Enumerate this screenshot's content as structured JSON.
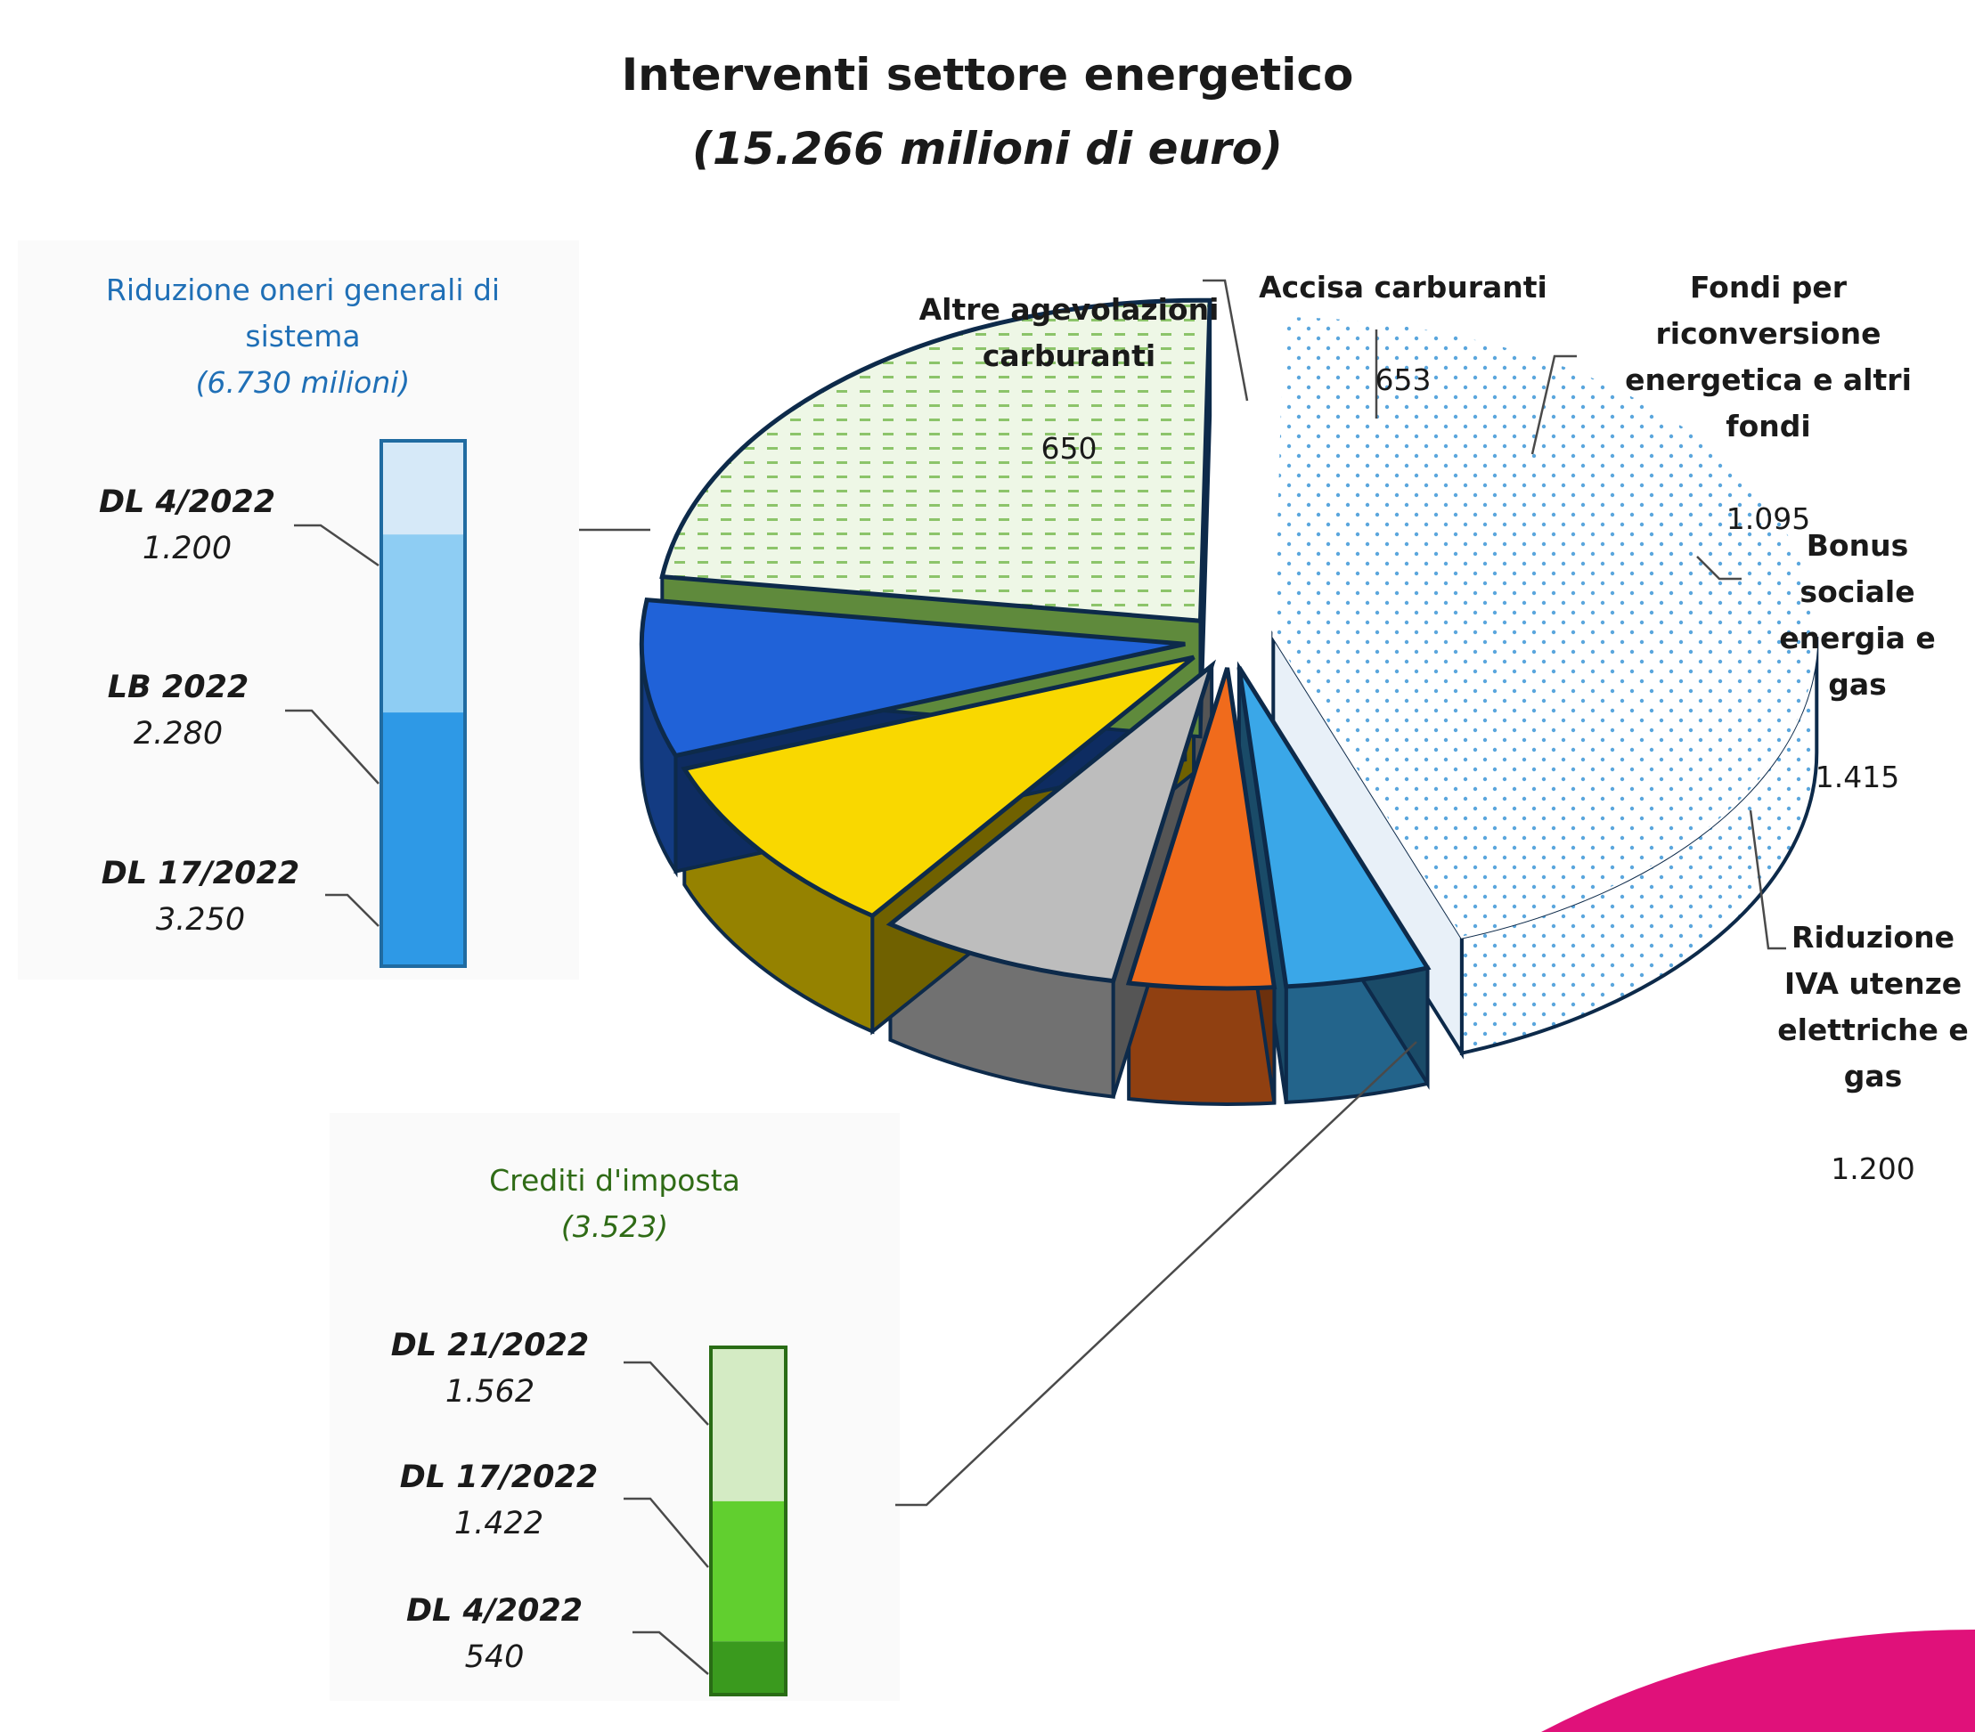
{
  "chart_data": [
    {
      "type": "pie",
      "title": "Interventi settore energetico",
      "subtitle": "(15.266 milioni di euro)",
      "slices": [
        {
          "label": "Riduzione oneri generali di sistema",
          "value": 6730,
          "value_label": "",
          "color": "#dbe9f6"
        },
        {
          "label": "Altre agevolazioni carburanti",
          "value": 650,
          "value_label": "650",
          "color": "#3aa7e8"
        },
        {
          "label": "Accisa carburanti",
          "value": 653,
          "value_label": "653",
          "color": "#f06b1c"
        },
        {
          "label": "Fondi per riconversione energetica e altri fondi",
          "value": 1095,
          "value_label": "1.095",
          "color": "#bdbdbd"
        },
        {
          "label": "Bonus sociale energia e gas",
          "value": 1415,
          "value_label": "1.415",
          "color": "#f9d800"
        },
        {
          "label": "Riduzione IVA utenze elettriche e gas",
          "value": 1200,
          "value_label": "1.200",
          "color": "#2062d8"
        },
        {
          "label": "Crediti d'imposta",
          "value": 3523,
          "value_label": "",
          "color": "#c8e4b3"
        }
      ]
    },
    {
      "type": "bar",
      "stacked": true,
      "title": "Riduzione oneri generali di sistema",
      "total_label": "(6.730 milioni)",
      "segments": [
        {
          "name": "DL 4/2022",
          "value": 1200,
          "value_label": "1.200",
          "color": "#d6e9f8"
        },
        {
          "name": "LB 2022",
          "value": 2280,
          "value_label": "2.280",
          "color": "#8ecdf3"
        },
        {
          "name": "DL 17/2022",
          "value": 3250,
          "value_label": "3.250",
          "color": "#2e99e6"
        }
      ]
    },
    {
      "type": "bar",
      "stacked": true,
      "title": "Crediti d'imposta",
      "total_label": "(3.523)",
      "segments": [
        {
          "name": "DL 21/2022",
          "value": 1562,
          "value_label": "1.562",
          "color": "#d4ebc4"
        },
        {
          "name": "DL 17/2022",
          "value": 1422,
          "value_label": "1.422",
          "color": "#61cf2f"
        },
        {
          "name": "DL 4/2022",
          "value": 540,
          "value_label": "540",
          "color": "#3a9a1e"
        }
      ]
    }
  ],
  "colors": {
    "blue_title": "#1f6fb6",
    "green_title": "#2f6b16",
    "accent_pink": "#e0117a"
  }
}
